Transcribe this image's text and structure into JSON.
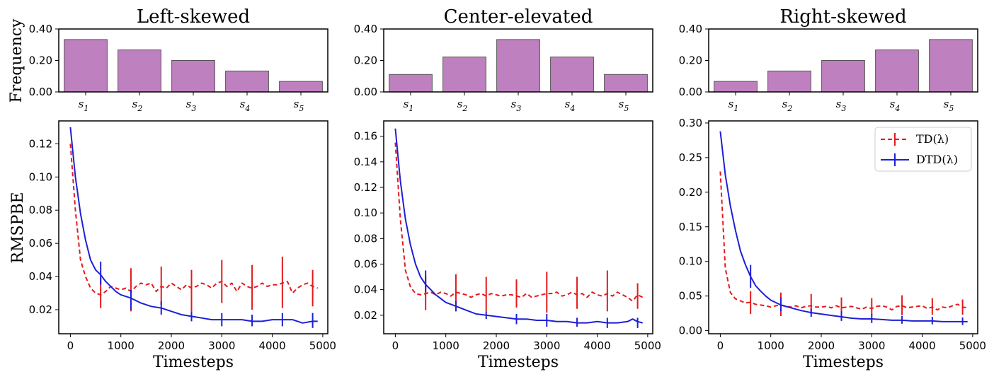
{
  "figure": {
    "freq_ylabel": "Frequency",
    "rmspbe_ylabel": "RMSPBE",
    "xlabel": "Timesteps"
  },
  "legend": [
    {
      "label": "TD(λ)",
      "color": "#e41a1c",
      "style": "dashed"
    },
    {
      "label": "DTD(λ)",
      "color": "#1f1fd6",
      "style": "solid"
    }
  ],
  "colors": {
    "bar": "#bf80bf",
    "bar_edge": "#555555"
  },
  "chart_data": [
    {
      "type": "bar",
      "title": "Left-skewed",
      "categories": [
        "s1",
        "s2",
        "s3",
        "s4",
        "s5"
      ],
      "values": [
        0.333,
        0.267,
        0.2,
        0.133,
        0.067
      ],
      "ylabel": "Frequency",
      "ylim": [
        0,
        0.4
      ],
      "yticks": [
        "0.00",
        "0.20",
        "0.40"
      ]
    },
    {
      "type": "bar",
      "title": "Center-elevated",
      "categories": [
        "s1",
        "s2",
        "s3",
        "s4",
        "s5"
      ],
      "values": [
        0.111,
        0.222,
        0.333,
        0.222,
        0.111
      ],
      "ylabel": "",
      "ylim": [
        0,
        0.4
      ],
      "yticks": [
        "0.00",
        "0.20",
        "0.40"
      ]
    },
    {
      "type": "bar",
      "title": "Right-skewed",
      "categories": [
        "s1",
        "s2",
        "s3",
        "s4",
        "s5"
      ],
      "values": [
        0.067,
        0.133,
        0.2,
        0.267,
        0.333
      ],
      "ylabel": "",
      "ylim": [
        0,
        0.4
      ],
      "yticks": [
        "0.00",
        "0.20",
        "0.40"
      ]
    },
    {
      "type": "line",
      "xlabel": "Timesteps",
      "ylabel": "RMSPBE",
      "xlim": [
        -230,
        5100
      ],
      "ylim": [
        0.0055,
        0.1338
      ],
      "xticks": [
        0,
        1000,
        2000,
        3000,
        4000,
        5000
      ],
      "xtick_labels": [
        "0",
        "1000",
        "2000",
        "3000",
        "4000",
        "5000"
      ],
      "yticks": [
        0.02,
        0.04,
        0.06,
        0.08,
        0.1,
        0.12
      ],
      "ytick_labels": [
        "0.02",
        "0.04",
        "0.06",
        "0.08",
        "0.10",
        "0.12"
      ],
      "series": [
        {
          "name": "TD(λ)",
          "x": [
            0,
            100,
            200,
            300,
            400,
            500,
            600,
            700,
            800,
            900,
            1000,
            1100,
            1200,
            1300,
            1400,
            1500,
            1600,
            1700,
            1800,
            1900,
            2000,
            2100,
            2200,
            2300,
            2400,
            2500,
            2600,
            2700,
            2800,
            2900,
            3000,
            3100,
            3200,
            3300,
            3400,
            3500,
            3600,
            3700,
            3800,
            3900,
            4000,
            4100,
            4200,
            4300,
            4400,
            4500,
            4600,
            4700,
            4800,
            4900
          ],
          "y": [
            0.12,
            0.08,
            0.05,
            0.04,
            0.033,
            0.03,
            0.029,
            0.031,
            0.034,
            0.033,
            0.032,
            0.033,
            0.031,
            0.034,
            0.036,
            0.035,
            0.036,
            0.031,
            0.034,
            0.033,
            0.036,
            0.034,
            0.032,
            0.035,
            0.033,
            0.034,
            0.036,
            0.035,
            0.033,
            0.036,
            0.037,
            0.034,
            0.036,
            0.031,
            0.036,
            0.034,
            0.033,
            0.034,
            0.036,
            0.034,
            0.035,
            0.035,
            0.036,
            0.037,
            0.03,
            0.033,
            0.035,
            0.036,
            0.034,
            0.033
          ],
          "error_x": [
            600,
            1200,
            1800,
            2400,
            3000,
            3600,
            4200,
            4800
          ],
          "error_low": [
            0.021,
            0.019,
            0.023,
            0.019,
            0.024,
            0.02,
            0.021,
            0.022
          ],
          "error_high": [
            0.039,
            0.045,
            0.046,
            0.044,
            0.05,
            0.047,
            0.052,
            0.044
          ]
        },
        {
          "name": "DTD(λ)",
          "x": [
            0,
            100,
            200,
            300,
            400,
            500,
            600,
            700,
            800,
            900,
            1000,
            1200,
            1400,
            1600,
            1800,
            2000,
            2200,
            2400,
            2600,
            2800,
            3000,
            3200,
            3400,
            3600,
            3800,
            4000,
            4200,
            4400,
            4600,
            4800,
            4900
          ],
          "y": [
            0.13,
            0.1,
            0.078,
            0.062,
            0.05,
            0.044,
            0.041,
            0.037,
            0.034,
            0.031,
            0.029,
            0.027,
            0.024,
            0.022,
            0.021,
            0.019,
            0.017,
            0.016,
            0.015,
            0.014,
            0.014,
            0.014,
            0.014,
            0.013,
            0.013,
            0.014,
            0.014,
            0.014,
            0.012,
            0.013,
            0.013
          ],
          "error_x": [
            600,
            1200,
            1800,
            2400,
            3000,
            3600,
            4200,
            4800
          ],
          "error_low": [
            0.035,
            0.02,
            0.017,
            0.013,
            0.01,
            0.01,
            0.01,
            0.009
          ],
          "error_high": [
            0.049,
            0.032,
            0.025,
            0.019,
            0.018,
            0.017,
            0.018,
            0.018
          ]
        }
      ]
    },
    {
      "type": "line",
      "xlabel": "Timesteps",
      "ylabel": "",
      "xlim": [
        -230,
        5100
      ],
      "ylim": [
        0.0055,
        0.172
      ],
      "xticks": [
        0,
        1000,
        2000,
        3000,
        4000,
        5000
      ],
      "xtick_labels": [
        "0",
        "1000",
        "2000",
        "3000",
        "4000",
        "5000"
      ],
      "yticks": [
        0.02,
        0.04,
        0.06,
        0.08,
        0.1,
        0.12,
        0.14,
        0.16
      ],
      "ytick_labels": [
        "0.02",
        "0.04",
        "0.06",
        "0.08",
        "0.10",
        "0.12",
        "0.14",
        "0.16"
      ],
      "series": [
        {
          "name": "TD(λ)",
          "x": [
            0,
            100,
            200,
            300,
            400,
            500,
            600,
            700,
            800,
            900,
            1000,
            1100,
            1200,
            1300,
            1400,
            1500,
            1600,
            1700,
            1800,
            1900,
            2000,
            2100,
            2200,
            2300,
            2400,
            2500,
            2600,
            2700,
            2800,
            2900,
            3000,
            3100,
            3200,
            3300,
            3400,
            3500,
            3600,
            3700,
            3800,
            3900,
            4000,
            4100,
            4200,
            4300,
            4400,
            4500,
            4600,
            4700,
            4800,
            4900
          ],
          "y": [
            0.155,
            0.095,
            0.055,
            0.042,
            0.037,
            0.036,
            0.037,
            0.038,
            0.036,
            0.038,
            0.037,
            0.035,
            0.038,
            0.037,
            0.036,
            0.034,
            0.036,
            0.037,
            0.035,
            0.037,
            0.036,
            0.035,
            0.036,
            0.036,
            0.035,
            0.034,
            0.037,
            0.034,
            0.035,
            0.036,
            0.037,
            0.037,
            0.038,
            0.035,
            0.036,
            0.038,
            0.036,
            0.037,
            0.034,
            0.038,
            0.036,
            0.035,
            0.037,
            0.035,
            0.038,
            0.036,
            0.034,
            0.031,
            0.036,
            0.034
          ],
          "error_x": [
            600,
            1200,
            1800,
            2400,
            3000,
            3600,
            4200,
            4800
          ],
          "error_low": [
            0.024,
            0.024,
            0.023,
            0.026,
            0.022,
            0.025,
            0.023,
            0.025
          ],
          "error_high": [
            0.051,
            0.052,
            0.05,
            0.048,
            0.054,
            0.05,
            0.055,
            0.045
          ]
        },
        {
          "name": "DTD(λ)",
          "x": [
            0,
            100,
            200,
            300,
            400,
            500,
            600,
            700,
            800,
            900,
            1000,
            1200,
            1400,
            1600,
            1800,
            2000,
            2200,
            2400,
            2600,
            2800,
            3000,
            3200,
            3400,
            3600,
            3800,
            4000,
            4200,
            4400,
            4600,
            4700,
            4800,
            4900
          ],
          "y": [
            0.166,
            0.125,
            0.095,
            0.075,
            0.06,
            0.05,
            0.044,
            0.04,
            0.036,
            0.033,
            0.03,
            0.027,
            0.024,
            0.021,
            0.02,
            0.019,
            0.018,
            0.017,
            0.017,
            0.016,
            0.016,
            0.015,
            0.015,
            0.014,
            0.014,
            0.015,
            0.014,
            0.014,
            0.015,
            0.017,
            0.015,
            0.014
          ],
          "error_x": [
            600,
            1200,
            1800,
            2400,
            3000,
            3600,
            4200,
            4800
          ],
          "error_low": [
            0.038,
            0.023,
            0.017,
            0.013,
            0.011,
            0.011,
            0.01,
            0.01
          ],
          "error_high": [
            0.055,
            0.031,
            0.023,
            0.021,
            0.021,
            0.018,
            0.018,
            0.018
          ]
        }
      ]
    },
    {
      "type": "line",
      "xlabel": "Timesteps",
      "ylabel": "",
      "xlim": [
        -230,
        5100
      ],
      "ylim": [
        -0.0045,
        0.303
      ],
      "xticks": [
        0,
        1000,
        2000,
        3000,
        4000,
        5000
      ],
      "xtick_labels": [
        "0",
        "1000",
        "2000",
        "3000",
        "4000",
        "5000"
      ],
      "yticks": [
        0.0,
        0.05,
        0.1,
        0.15,
        0.2,
        0.25,
        0.3
      ],
      "ytick_labels": [
        "0.00",
        "0.05",
        "0.10",
        "0.15",
        "0.20",
        "0.25",
        "0.30"
      ],
      "series": [
        {
          "name": "TD(λ)",
          "x": [
            0,
            100,
            200,
            300,
            400,
            500,
            600,
            700,
            800,
            900,
            1000,
            1100,
            1200,
            1300,
            1400,
            1500,
            1600,
            1700,
            1800,
            1900,
            2000,
            2100,
            2200,
            2300,
            2400,
            2500,
            2600,
            2700,
            2800,
            2900,
            3000,
            3100,
            3200,
            3300,
            3400,
            3500,
            3600,
            3700,
            3800,
            3900,
            4000,
            4100,
            4200,
            4300,
            4400,
            4500,
            4600,
            4700,
            4800,
            4900
          ],
          "y": [
            0.23,
            0.09,
            0.055,
            0.046,
            0.043,
            0.04,
            0.041,
            0.038,
            0.037,
            0.036,
            0.034,
            0.036,
            0.037,
            0.035,
            0.034,
            0.036,
            0.033,
            0.035,
            0.036,
            0.034,
            0.034,
            0.035,
            0.033,
            0.036,
            0.033,
            0.034,
            0.035,
            0.033,
            0.031,
            0.034,
            0.032,
            0.035,
            0.036,
            0.034,
            0.03,
            0.035,
            0.036,
            0.033,
            0.034,
            0.035,
            0.036,
            0.032,
            0.034,
            0.03,
            0.034,
            0.033,
            0.036,
            0.038,
            0.034,
            0.033
          ],
          "error_x": [
            600,
            1200,
            1800,
            2400,
            3000,
            3600,
            4200,
            4800
          ],
          "error_low": [
            0.024,
            0.021,
            0.024,
            0.023,
            0.022,
            0.022,
            0.023,
            0.023
          ],
          "error_high": [
            0.057,
            0.055,
            0.053,
            0.048,
            0.047,
            0.051,
            0.047,
            0.045
          ]
        },
        {
          "name": "DTD(λ)",
          "x": [
            0,
            100,
            200,
            300,
            400,
            500,
            600,
            700,
            800,
            900,
            1000,
            1200,
            1400,
            1600,
            1800,
            2000,
            2200,
            2400,
            2600,
            2800,
            3000,
            3200,
            3400,
            3600,
            3800,
            4000,
            4200,
            4400,
            4600,
            4800,
            4900
          ],
          "y": [
            0.288,
            0.225,
            0.18,
            0.145,
            0.115,
            0.095,
            0.078,
            0.065,
            0.057,
            0.05,
            0.044,
            0.037,
            0.033,
            0.029,
            0.026,
            0.024,
            0.022,
            0.02,
            0.018,
            0.017,
            0.017,
            0.016,
            0.015,
            0.015,
            0.014,
            0.014,
            0.014,
            0.013,
            0.013,
            0.013,
            0.013
          ],
          "error_x": [
            600,
            1200,
            1800,
            2400,
            3000,
            3600,
            4200,
            4800
          ],
          "error_low": [
            0.062,
            0.028,
            0.02,
            0.014,
            0.011,
            0.01,
            0.009,
            0.008
          ],
          "error_high": [
            0.095,
            0.048,
            0.032,
            0.028,
            0.024,
            0.021,
            0.02,
            0.019
          ]
        }
      ]
    }
  ]
}
